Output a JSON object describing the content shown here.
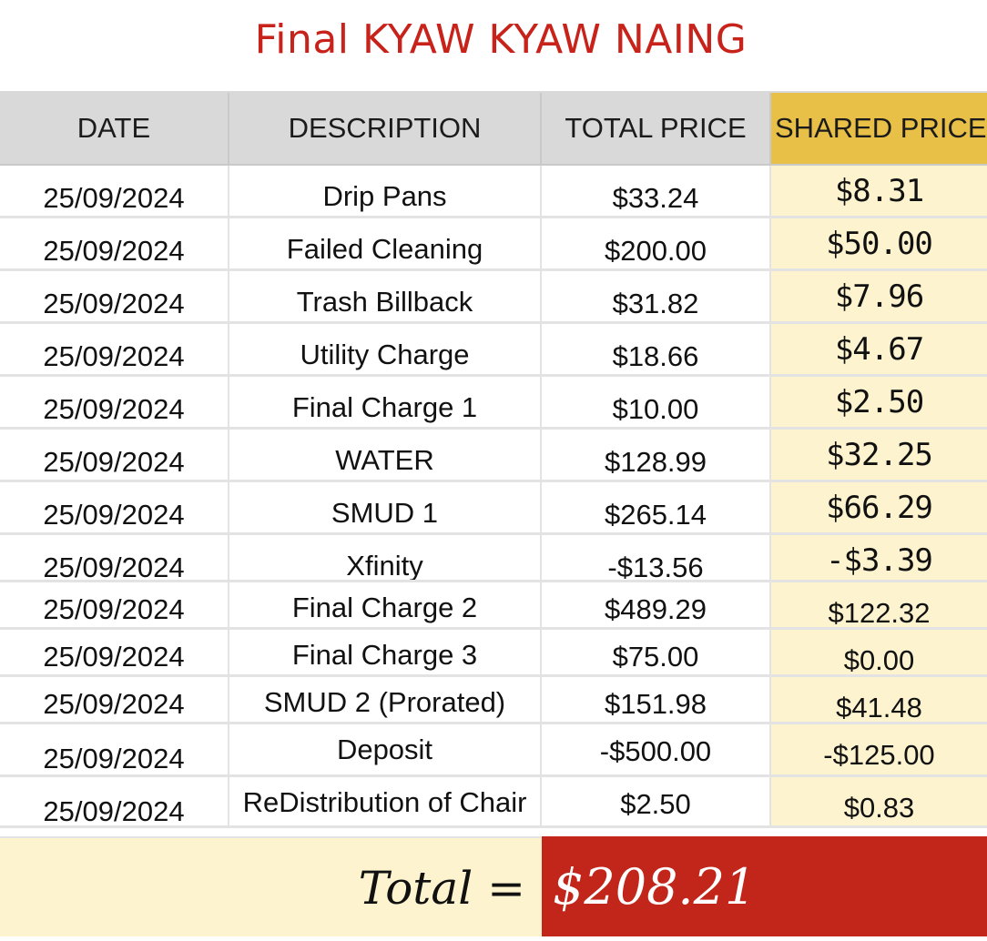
{
  "title": "Final KYAW KYAW NAING",
  "headers": {
    "date": "DATE",
    "description": "DESCRIPTION",
    "total_price": "TOTAL PRICE",
    "shared_price": "SHARED PRICE"
  },
  "rows": [
    {
      "date": "25/09/2024",
      "description": "Drip Pans",
      "total_price": "$33.24",
      "shared_price": "$8.31"
    },
    {
      "date": "25/09/2024",
      "description": "Failed Cleaning",
      "total_price": "$200.00",
      "shared_price": "$50.00"
    },
    {
      "date": "25/09/2024",
      "description": "Trash Billback",
      "total_price": "$31.82",
      "shared_price": "$7.96"
    },
    {
      "date": "25/09/2024",
      "description": "Utility Charge",
      "total_price": "$18.66",
      "shared_price": "$4.67"
    },
    {
      "date": "25/09/2024",
      "description": "Final Charge 1",
      "total_price": "$10.00",
      "shared_price": "$2.50"
    },
    {
      "date": "25/09/2024",
      "description": "WATER",
      "total_price": "$128.99",
      "shared_price": "$32.25"
    },
    {
      "date": "25/09/2024",
      "description": "SMUD 1",
      "total_price": "$265.14",
      "shared_price": "$66.29"
    },
    {
      "date": "25/09/2024",
      "description": "Xfinity",
      "total_price": "-$13.56",
      "shared_price": "-$3.39"
    },
    {
      "date": "25/09/2024",
      "description": "Final Charge 2",
      "total_price": "$489.29",
      "shared_price": "$122.32"
    },
    {
      "date": "25/09/2024",
      "description": "Final Charge 3",
      "total_price": "$75.00",
      "shared_price": "$0.00"
    },
    {
      "date": "25/09/2024",
      "description": "SMUD 2 (Prorated)",
      "total_price": "$151.98",
      "shared_price": "$41.48"
    },
    {
      "date": "25/09/2024",
      "description": "Deposit",
      "total_price": "-$500.00",
      "shared_price": "-$125.00"
    },
    {
      "date": "25/09/2024",
      "description": "ReDistribution of Chair",
      "total_price": "$2.50",
      "shared_price": "$0.83"
    }
  ],
  "total": {
    "label": "Total =",
    "value": "$208.21"
  },
  "colors": {
    "title": "#c8231b",
    "header_bg": "#d9d9d9",
    "shared_header_bg": "#e8bf47",
    "shared_col_bg": "#fdf3cf",
    "total_value_bg": "#c2261a"
  }
}
